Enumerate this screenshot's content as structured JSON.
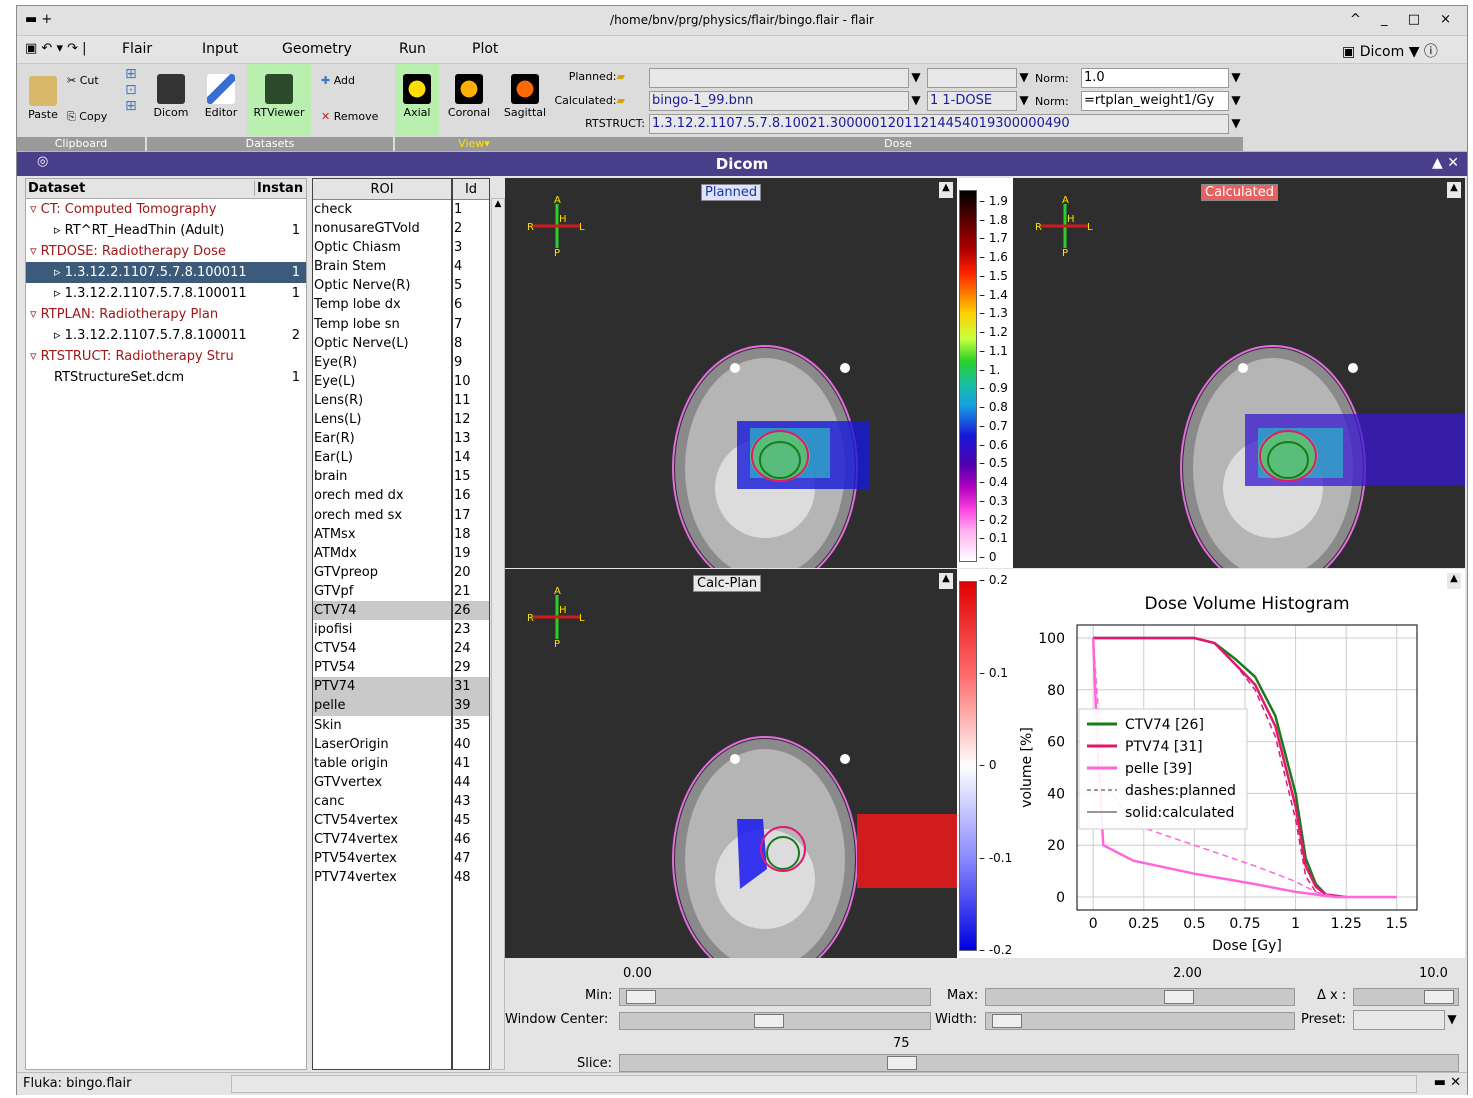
{
  "window": {
    "title": "/home/bnv/prg/physics/flair/bingo.flair - flair",
    "controls": "^ _ □ ×"
  },
  "menu": {
    "items": [
      "Flair",
      "Input",
      "Geometry",
      "Run",
      "Plot"
    ],
    "dicom_tab": "Dicom"
  },
  "ribbon": {
    "clipboard": {
      "paste": "Paste",
      "cut": "Cut",
      "copy": "Copy",
      "group": "Clipboard"
    },
    "datasets": {
      "dicom": "Dicom",
      "editor": "Editor",
      "rtviewer": "RTViewer",
      "add": "Add",
      "remove": "Remove",
      "group": "Datasets"
    },
    "view": {
      "axial": "Axial",
      "coronal": "Coronal",
      "sagittal": "Sagittal",
      "group": "View"
    },
    "dose": {
      "group": "Dose",
      "planned_label": "Planned:",
      "calculated_label": "Calculated:",
      "rtstruct_label": "RTSTRUCT:",
      "calculated_file": "bingo-1_99.bnn",
      "calculated_det": "1 1-DOSE",
      "rtstruct_value": "1.3.12.2.1107.5.7.8.10021.30000012011214454019300000490",
      "norm_label": "Norm:",
      "planned_norm": "1.0",
      "calculated_norm": "=rtplan_weight1/Gy"
    }
  },
  "dicom_panel": {
    "title": "Dicom"
  },
  "tree": {
    "col_dataset": "Dataset",
    "col_instance": "Instan",
    "rows": [
      {
        "label": "CT: Computed Tomography",
        "n": ""
      },
      {
        "label": "RT^RT_HeadThin (Adult)",
        "n": "1"
      },
      {
        "label": "RTDOSE: Radiotherapy Dose",
        "n": ""
      },
      {
        "label": "1.3.12.2.1107.5.7.8.100011",
        "n": "1"
      },
      {
        "label": "1.3.12.2.1107.5.7.8.100011",
        "n": "1"
      },
      {
        "label": "RTPLAN: Radiotherapy Plan",
        "n": ""
      },
      {
        "label": "1.3.12.2.1107.5.7.8.100011",
        "n": "2"
      },
      {
        "label": "RTSTRUCT: Radiotherapy Stru",
        "n": ""
      },
      {
        "label": "RTStructureSet.dcm",
        "n": "1"
      }
    ]
  },
  "roi": {
    "header": "ROI",
    "id_header": "Id",
    "names": [
      "check",
      "nonusareGTVold",
      "Optic Chiasm",
      "Brain Stem",
      "Optic Nerve(R)",
      "Temp lobe dx",
      "Temp lobe sn",
      "Optic Nerve(L)",
      "Eye(R)",
      "Eye(L)",
      "Lens(R)",
      "Lens(L)",
      "Ear(R)",
      "Ear(L)",
      "brain",
      "orech med dx",
      "orech med sx",
      "ATMsx",
      "ATMdx",
      "GTVpreop",
      "GTVpf",
      "CTV74",
      "ipofisi",
      "CTV54",
      "PTV54",
      "PTV74",
      "pelle",
      "Skin",
      "LaserOrigin",
      "table origin",
      "GTVvertex",
      "canc",
      "CTV54vertex",
      "CTV74vertex",
      "PTV54vertex",
      "PTV74vertex"
    ],
    "ids": [
      "1",
      "2",
      "3",
      "4",
      "5",
      "6",
      "7",
      "8",
      "9",
      "10",
      "11",
      "12",
      "13",
      "14",
      "15",
      "16",
      "17",
      "18",
      "19",
      "20",
      "21",
      "26",
      "23",
      "24",
      "29",
      "31",
      "39",
      "35",
      "40",
      "41",
      "44",
      "43",
      "45",
      "46",
      "47",
      "48"
    ]
  },
  "views": {
    "planned": "Planned",
    "calculated": "Calculated",
    "diff": "Calc-Plan"
  },
  "colorbar1": {
    "ticks": [
      "1.9",
      "1.8",
      "1.7",
      "1.6",
      "1.5",
      "1.4",
      "1.3",
      "1.2",
      "1.1",
      "1.",
      "0.9",
      "0.8",
      "0.7",
      "0.6",
      "0.5",
      "0.4",
      "0.3",
      "0.2",
      "0.1",
      "0"
    ]
  },
  "colorbar2": {
    "ticks": [
      "0.2",
      "0.1",
      "0",
      "-0.1",
      "-0.2"
    ]
  },
  "chart_data": {
    "type": "line",
    "title": "Dose Volume Histogram",
    "xlabel": "Dose [Gy]",
    "ylabel": "volume [%]",
    "xlim": [
      -0.08,
      1.6
    ],
    "ylim": [
      -5,
      105
    ],
    "xticks": [
      "0",
      "0.25",
      "0.5",
      "0.75",
      "1",
      "1.25",
      "1.5"
    ],
    "yticks": [
      "0",
      "20",
      "40",
      "60",
      "80",
      "100"
    ],
    "grid": true,
    "legend_position": "center-left",
    "legend": [
      "CTV74 [26]",
      "PTV74 [31]",
      "pelle [39]",
      "dashes:planned",
      "solid:calculated"
    ],
    "series": [
      {
        "name": "CTV74 [26]",
        "style": "solid",
        "color": "#1a7a1a",
        "x": [
          0,
          0.5,
          0.6,
          0.7,
          0.8,
          0.9,
          1.0,
          1.05,
          1.1,
          1.15,
          1.2
        ],
        "y": [
          100,
          100,
          98,
          92,
          85,
          70,
          40,
          15,
          5,
          1,
          0
        ]
      },
      {
        "name": "PTV74 [31]",
        "style": "solid",
        "color": "#e0186e",
        "x": [
          0,
          0.5,
          0.6,
          0.7,
          0.8,
          0.9,
          1.0,
          1.05,
          1.1,
          1.15,
          1.25
        ],
        "y": [
          100,
          100,
          98,
          90,
          82,
          66,
          35,
          12,
          4,
          1,
          0
        ]
      },
      {
        "name": "PTV74 [31]",
        "style": "dashed",
        "color": "#e0186e",
        "x": [
          0,
          0.5,
          0.6,
          0.7,
          0.8,
          0.9,
          1.0,
          1.05,
          1.1,
          1.15
        ],
        "y": [
          100,
          100,
          98,
          90,
          80,
          62,
          30,
          8,
          2,
          0
        ]
      },
      {
        "name": "pelle [39]",
        "style": "solid",
        "color": "#ff66dd",
        "x": [
          0,
          0.02,
          0.05,
          0.2,
          0.5,
          0.8,
          1.0,
          1.1,
          1.2,
          1.5
        ],
        "y": [
          100,
          60,
          20,
          14,
          9,
          5,
          2,
          1,
          0,
          0
        ]
      },
      {
        "name": "pelle [39]",
        "style": "dashed",
        "color": "#ff66dd",
        "x": [
          0,
          0.05,
          0.2,
          0.5,
          0.8,
          1.0,
          1.1,
          1.2
        ],
        "y": [
          100,
          45,
          28,
          20,
          12,
          6,
          2,
          0
        ]
      }
    ]
  },
  "controls": {
    "min_label": "Min:",
    "max_label": "Max:",
    "dx_label": "Δ x :",
    "min_val": "0.00",
    "max_val": "2.00",
    "dx_val": "10.0",
    "wc_label": "Window Center:",
    "width_label": "Width:",
    "preset_label": "Preset:",
    "slice_label": "Slice:",
    "slice_val": "75",
    "min_frac": 0.02,
    "max_frac": 0.64,
    "dx_frac": 0.95,
    "wc_frac": 0.48,
    "width_frac": 0.02,
    "slice_frac": 0.33
  },
  "status": {
    "text": "Fluka: bingo.flair"
  }
}
